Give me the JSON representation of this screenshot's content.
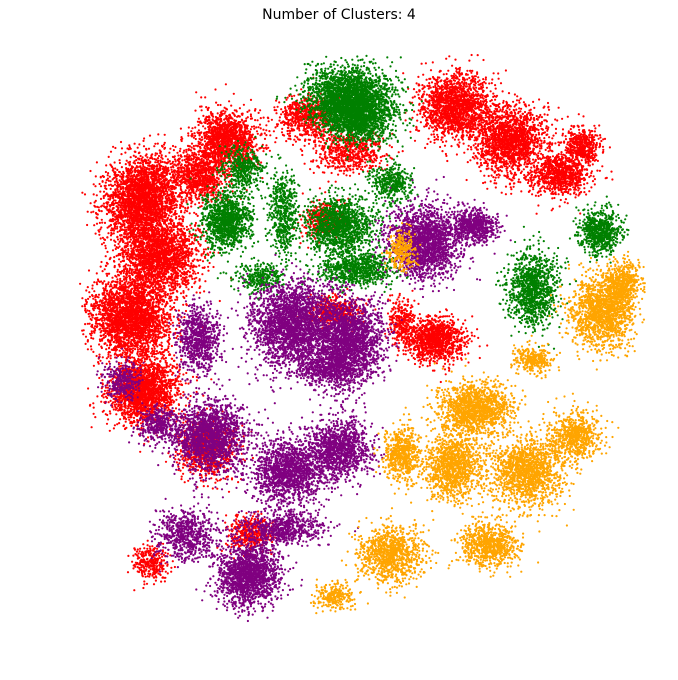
{
  "chart_data": {
    "type": "scatter",
    "title": "Number of Clusters: 4",
    "xlabel": "",
    "ylabel": "",
    "axes_visible": false,
    "grid": false,
    "legend": "none",
    "xlim": [
      -100,
      100
    ],
    "ylim": [
      -100,
      100
    ],
    "series": [
      {
        "cluster": 0,
        "color": "#ff0000",
        "blobs": [
          [
            -78,
            50,
            10,
            12,
            -25,
            2600
          ],
          [
            -72,
            30,
            11,
            10,
            0,
            2200
          ],
          [
            -82,
            8,
            11,
            11,
            20,
            2600
          ],
          [
            -78,
            -18,
            10,
            9,
            30,
            2000
          ],
          [
            -55,
            -38,
            8,
            8,
            -20,
            900
          ],
          [
            -48,
            70,
            9,
            8,
            -10,
            1400
          ],
          [
            -58,
            58,
            8,
            7,
            0,
            900
          ],
          [
            -20,
            78,
            8,
            6,
            0,
            700
          ],
          [
            -5,
            66,
            10,
            6,
            0,
            600
          ],
          [
            -14,
            42,
            6,
            5,
            0,
            400
          ],
          [
            -10,
            10,
            7,
            4,
            0,
            500
          ],
          [
            33,
            82,
            10,
            9,
            0,
            1700
          ],
          [
            52,
            70,
            10,
            10,
            -30,
            1700
          ],
          [
            70,
            58,
            8,
            6,
            0,
            900
          ],
          [
            78,
            68,
            5,
            5,
            0,
            450
          ],
          [
            26,
            0,
            8,
            6,
            0,
            1100
          ],
          [
            -40,
            -68,
            6,
            5,
            0,
            420
          ],
          [
            -75,
            -78,
            5,
            5,
            0,
            300
          ],
          [
            14,
            6,
            4,
            6,
            0,
            300
          ]
        ]
      },
      {
        "cluster": 1,
        "color": "#008000",
        "blobs": [
          [
            -5,
            86,
            12,
            8,
            0,
            2000
          ],
          [
            -2,
            78,
            10,
            7,
            0,
            1500
          ],
          [
            -48,
            42,
            7,
            8,
            0,
            1100
          ],
          [
            -28,
            45,
            4,
            12,
            0,
            500
          ],
          [
            -8,
            40,
            10,
            8,
            0,
            1300
          ],
          [
            -2,
            25,
            11,
            5,
            0,
            800
          ],
          [
            10,
            55,
            6,
            5,
            0,
            400
          ],
          [
            60,
            18,
            7,
            10,
            0,
            1100
          ],
          [
            84,
            38,
            6,
            6,
            0,
            700
          ],
          [
            -36,
            22,
            7,
            4,
            0,
            300
          ],
          [
            -42,
            60,
            6,
            6,
            0,
            400
          ]
        ]
      },
      {
        "cluster": 2,
        "color": "#800080",
        "blobs": [
          [
            -24,
            5,
            12,
            12,
            0,
            2600
          ],
          [
            -4,
            0,
            9,
            12,
            0,
            1900
          ],
          [
            -58,
            0,
            6,
            9,
            0,
            800
          ],
          [
            -54,
            -34,
            10,
            10,
            0,
            1700
          ],
          [
            -26,
            -46,
            10,
            9,
            0,
            1500
          ],
          [
            -8,
            -38,
            9,
            8,
            0,
            1200
          ],
          [
            -40,
            -82,
            9,
            9,
            0,
            1600
          ],
          [
            -28,
            -66,
            12,
            5,
            0,
            700
          ],
          [
            -85,
            -14,
            5,
            6,
            0,
            300
          ],
          [
            -62,
            -68,
            8,
            7,
            0,
            700
          ],
          [
            22,
            34,
            10,
            10,
            -15,
            2000
          ],
          [
            40,
            40,
            6,
            5,
            0,
            600
          ],
          [
            -12,
            -10,
            8,
            5,
            0,
            600
          ],
          [
            -72,
            -30,
            6,
            5,
            0,
            400
          ]
        ]
      },
      {
        "cluster": 3,
        "color": "#ffa500",
        "blobs": [
          [
            40,
            -24,
            10,
            7,
            0,
            1400
          ],
          [
            32,
            -44,
            8,
            10,
            0,
            1200
          ],
          [
            58,
            -46,
            10,
            10,
            0,
            1400
          ],
          [
            75,
            -34,
            7,
            7,
            0,
            700
          ],
          [
            85,
            10,
            9,
            10,
            0,
            1500
          ],
          [
            92,
            20,
            5,
            6,
            0,
            500
          ],
          [
            45,
            -72,
            8,
            6,
            0,
            800
          ],
          [
            10,
            -75,
            9,
            8,
            0,
            1000
          ],
          [
            14,
            -40,
            5,
            8,
            0,
            600
          ],
          [
            14,
            32,
            4,
            6,
            0,
            250
          ],
          [
            -10,
            -90,
            6,
            4,
            0,
            250
          ],
          [
            60,
            -7,
            5,
            4,
            0,
            300
          ]
        ]
      }
    ]
  }
}
